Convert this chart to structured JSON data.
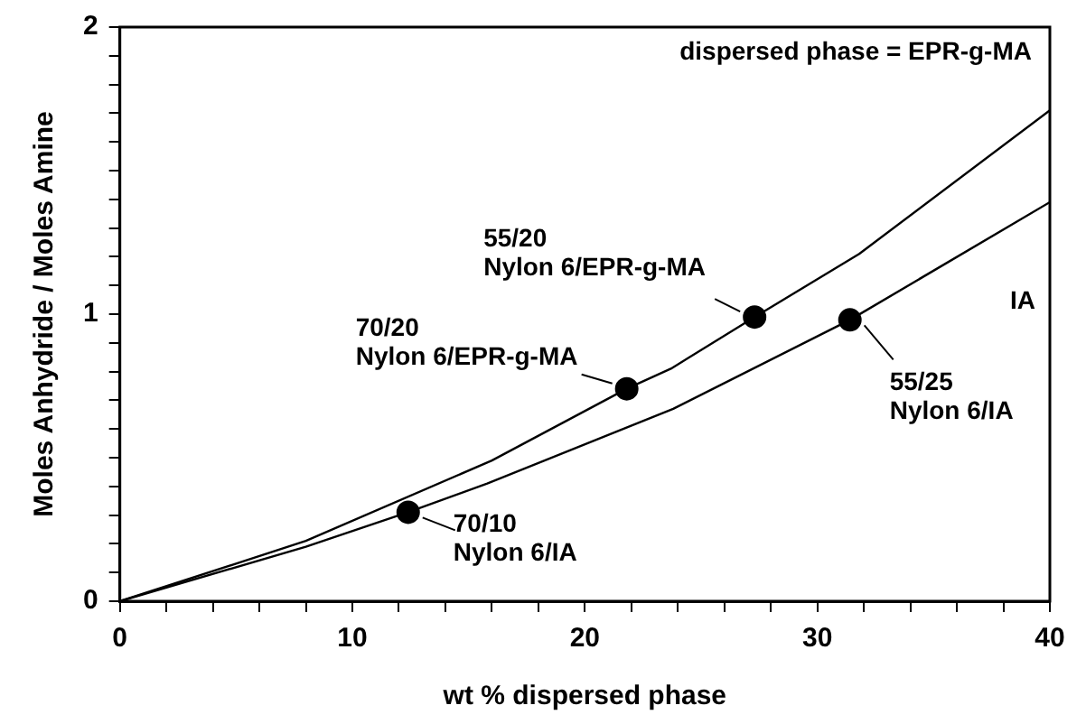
{
  "chart_data": {
    "type": "line",
    "xlabel": "wt % dispersed phase",
    "ylabel": "Moles Anhydride / Moles Amine",
    "xlim": [
      0,
      40
    ],
    "ylim": [
      0,
      2
    ],
    "xticks": [
      0,
      {
        "value": 2,
        "label": null
      },
      {
        "value": 4,
        "label": null
      },
      {
        "value": 6,
        "label": null
      },
      {
        "value": 8,
        "label": null
      },
      10,
      {
        "value": 12,
        "label": null
      },
      {
        "value": 14,
        "label": null
      },
      {
        "value": 16,
        "label": null
      },
      {
        "value": 18,
        "label": null
      },
      20,
      {
        "value": 22,
        "label": null
      },
      {
        "value": 24,
        "label": null
      },
      {
        "value": 26,
        "label": null
      },
      {
        "value": 28,
        "label": null
      },
      30,
      {
        "value": 32,
        "label": null
      },
      {
        "value": 34,
        "label": null
      },
      {
        "value": 36,
        "label": null
      },
      {
        "value": 38,
        "label": null
      },
      40
    ],
    "yticks": [
      0,
      {
        "value": 0.1,
        "label": null
      },
      {
        "value": 0.2,
        "label": null
      },
      {
        "value": 0.3,
        "label": null
      },
      {
        "value": 0.4,
        "label": null
      },
      {
        "value": 0.5,
        "label": null
      },
      {
        "value": 0.6,
        "label": null
      },
      {
        "value": 0.7,
        "label": null
      },
      {
        "value": 0.8,
        "label": null
      },
      {
        "value": 0.9,
        "label": null
      },
      1,
      {
        "value": 1.1,
        "label": null
      },
      {
        "value": 1.2,
        "label": null
      },
      {
        "value": 1.3,
        "label": null
      },
      {
        "value": 1.4,
        "label": null
      },
      {
        "value": 1.5,
        "label": null
      },
      {
        "value": 1.6,
        "label": null
      },
      {
        "value": 1.7,
        "label": null
      },
      {
        "value": 1.8,
        "label": null
      },
      {
        "value": 1.9,
        "label": null
      },
      2
    ],
    "grid": false,
    "legend": false,
    "marker": "none",
    "line_style": "solid",
    "series": [
      {
        "name": "dispersed phase = EPR-g-MA",
        "color": "#000000",
        "x": [
          0,
          8,
          16,
          21.8,
          23.7,
          27.3,
          31.8,
          40
        ],
        "values": [
          0,
          0.21,
          0.49,
          0.74,
          0.81,
          0.99,
          1.21,
          1.71
        ]
      },
      {
        "name": "IA",
        "color": "#000000",
        "x": [
          0,
          8,
          12.4,
          15.8,
          23.8,
          31.4,
          40
        ],
        "values": [
          0,
          0.19,
          0.31,
          0.41,
          0.67,
          0.98,
          1.39
        ]
      },
      {
        "type": "scatter",
        "marker": "circle",
        "color": "#000000",
        "x": [
          12.4,
          21.8,
          27.3,
          31.4
        ],
        "values": [
          0.31,
          0.74,
          0.99,
          0.98
        ]
      }
    ],
    "annotations": [
      {
        "text": "70/10\nNylon 6/IA",
        "x": 12.4,
        "y": 0.31
      },
      {
        "text": "70/20\nNylon 6/EPR-g-MA",
        "x": 21.8,
        "y": 0.74
      },
      {
        "text": "55/20\nNylon 6/EPR-g-MA",
        "x": 27.3,
        "y": 0.99
      },
      {
        "text": "55/25\nNylon 6/IA",
        "x": 31.4,
        "y": 0.98
      }
    ]
  }
}
